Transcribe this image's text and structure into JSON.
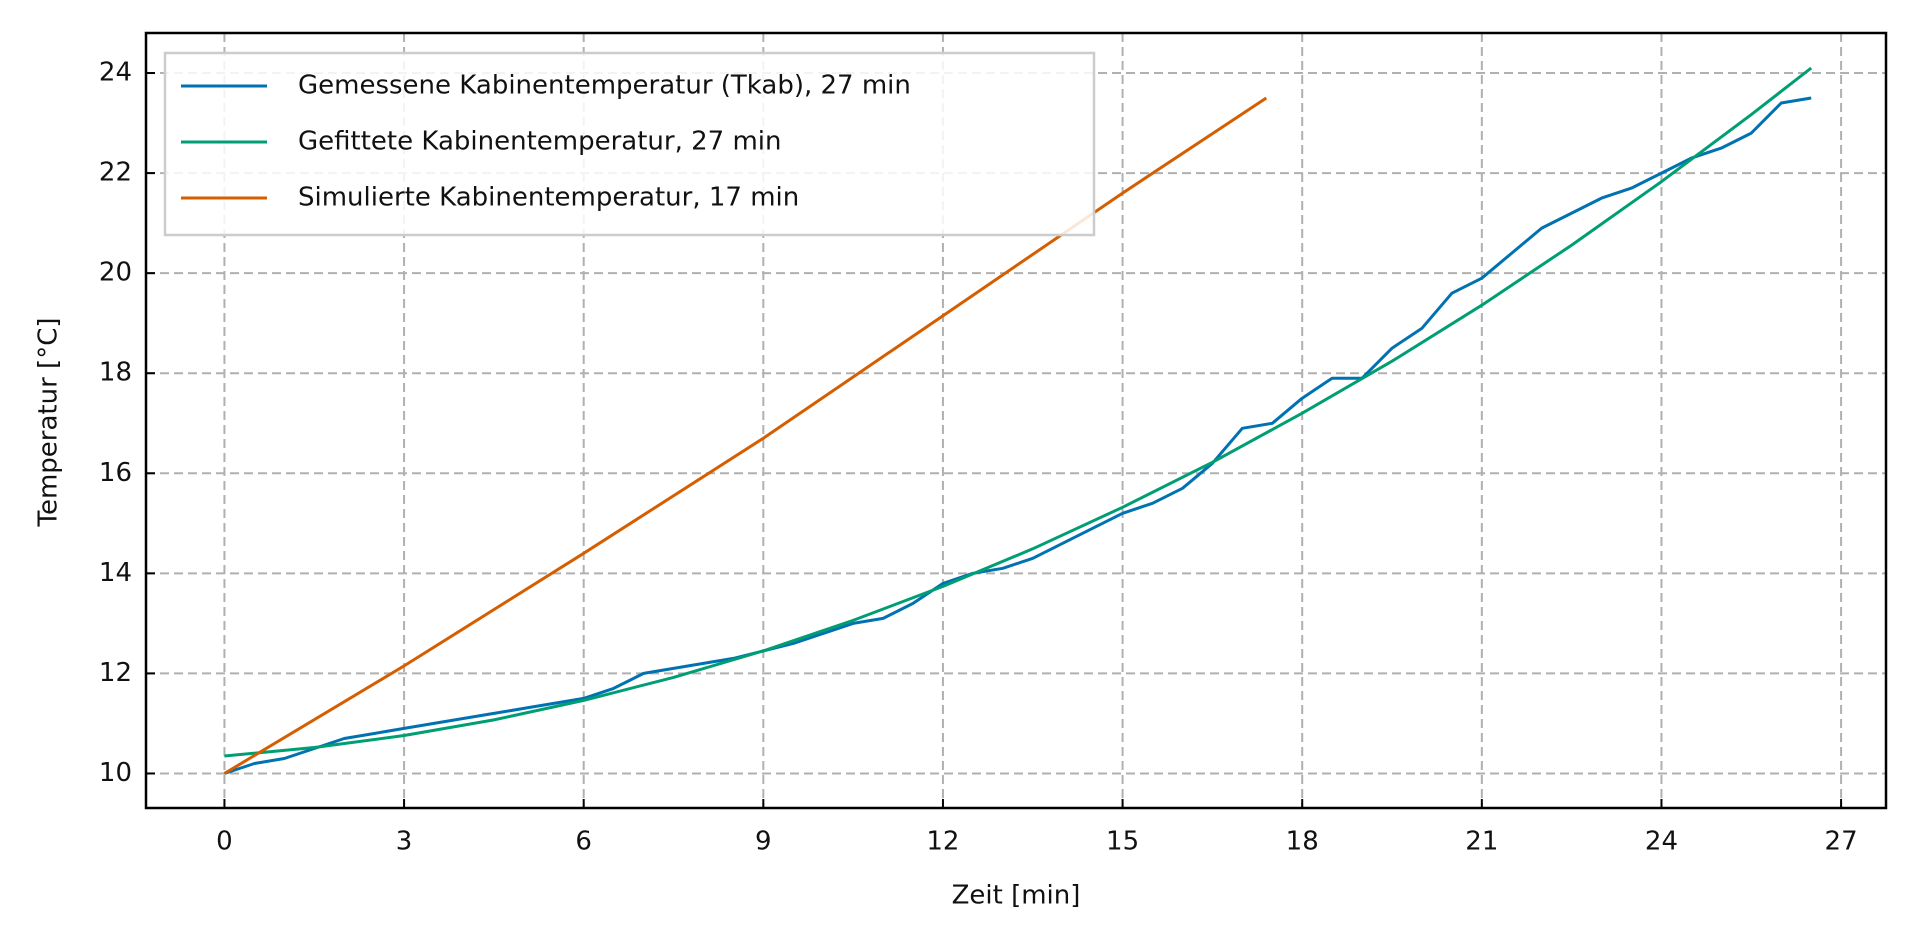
{
  "chart_data": {
    "type": "line",
    "x_label": "Zeit [min]",
    "y_label": "Temperatur [°C]",
    "xlim": [
      -1.31,
      27.75
    ],
    "ylim": [
      9.31,
      24.8
    ],
    "xticks": [
      0,
      3,
      6,
      9,
      12,
      15,
      18,
      21,
      24,
      27
    ],
    "yticks": [
      10,
      12,
      14,
      16,
      18,
      20,
      22,
      24
    ],
    "grid": true,
    "legend": "upper left",
    "series": [
      {
        "name": "Gemessene Kabinentemperatur (Tkab), 27 min",
        "color": "#0072b2",
        "x": [
          0,
          0.5,
          1,
          1.5,
          2,
          2.5,
          3,
          3.5,
          4,
          4.5,
          5,
          5.5,
          6,
          6.5,
          7,
          7.5,
          8,
          8.5,
          9,
          9.5,
          10,
          10.5,
          11,
          11.5,
          12,
          12.5,
          13,
          13.5,
          14,
          14.5,
          15,
          15.5,
          16,
          16.5,
          17,
          17.5,
          18,
          18.5,
          19,
          19.5,
          20,
          20.5,
          21,
          21.5,
          22,
          22.5,
          23,
          23.5,
          24,
          24.5,
          25,
          25.5,
          26,
          26.5
        ],
        "values": [
          10.0,
          10.2,
          10.3,
          10.5,
          10.7,
          10.8,
          10.9,
          11.0,
          11.1,
          11.2,
          11.3,
          11.4,
          11.5,
          11.7,
          12.0,
          12.1,
          12.2,
          12.3,
          12.45,
          12.6,
          12.8,
          13.0,
          13.1,
          13.4,
          13.8,
          14.0,
          14.1,
          14.3,
          14.6,
          14.9,
          15.2,
          15.4,
          15.7,
          16.2,
          16.9,
          17.0,
          17.5,
          17.9,
          17.9,
          18.5,
          18.9,
          19.6,
          19.9,
          20.4,
          20.9,
          21.2,
          21.5,
          21.7,
          22.0,
          22.3,
          22.5,
          22.8,
          23.4,
          23.5
        ]
      },
      {
        "name": "Gefittete Kabinentemperatur, 27 min",
        "color": "#009e73",
        "x": [
          0,
          1.5,
          3,
          4.5,
          6,
          7.5,
          9,
          10.5,
          12,
          13.5,
          15,
          16.5,
          18,
          19.5,
          21,
          22.5,
          24,
          25.5,
          26.5
        ],
        "values": [
          10.35,
          10.52,
          10.76,
          11.07,
          11.46,
          11.92,
          12.45,
          13.06,
          13.74,
          14.49,
          15.32,
          16.22,
          17.2,
          18.24,
          19.36,
          20.56,
          21.83,
          23.17,
          24.1
        ]
      },
      {
        "name": "Simulierte Kabinentemperatur, 17 min",
        "color": "#d55e00",
        "x": [
          0,
          3,
          6,
          9,
          12,
          15,
          17.4
        ],
        "values": [
          10.0,
          12.15,
          14.4,
          16.7,
          19.15,
          21.6,
          23.5
        ]
      }
    ]
  }
}
